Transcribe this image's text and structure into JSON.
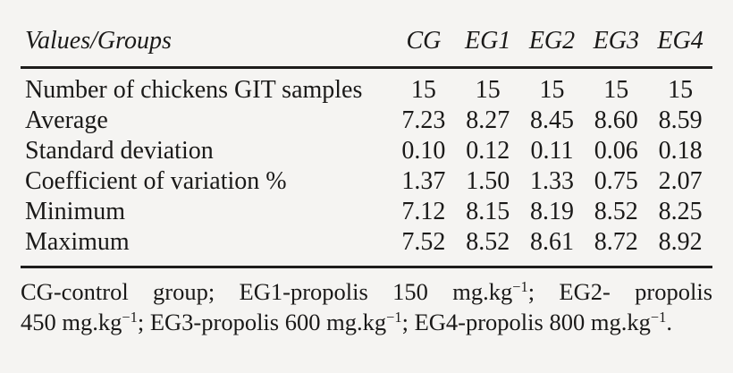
{
  "table": {
    "header": {
      "label_col": "Values/Groups",
      "group_cols": [
        "CG",
        "EG1",
        "EG2",
        "EG3",
        "EG4"
      ]
    },
    "rows": [
      {
        "label": "Number of chickens GIT samples",
        "values": [
          "15",
          "15",
          "15",
          "15",
          "15"
        ]
      },
      {
        "label": "Average",
        "values": [
          "7.23",
          "8.27",
          "8.45",
          "8.60",
          "8.59"
        ]
      },
      {
        "label": "Standard deviation",
        "values": [
          "0.10",
          "0.12",
          "0.11",
          "0.06",
          "0.18"
        ]
      },
      {
        "label": "Coefficient of variation %",
        "values": [
          "1.37",
          "1.50",
          "1.33",
          "0.75",
          "2.07"
        ]
      },
      {
        "label": "Minimum",
        "values": [
          "7.12",
          "8.15",
          "8.19",
          "8.52",
          "8.25"
        ]
      },
      {
        "label": "Maximum",
        "values": [
          "7.52",
          "8.52",
          "8.61",
          "8.72",
          "8.92"
        ]
      }
    ]
  },
  "footnote": {
    "line1": {
      "seg0": "CG-control group; EG1-propolis 150 mg.kg",
      "sup0": "−1",
      "seg1": "; EG2- propolis"
    },
    "line2": {
      "seg0": "450 mg.kg",
      "sup0": "−1",
      "seg1": "; EG3-propolis 600 mg.kg",
      "sup1": "−1",
      "seg2": "; EG4-propolis 800 mg.kg",
      "sup2": "−1",
      "seg3": "."
    }
  },
  "colors": {
    "background": "#f5f4f2",
    "text": "#1a1918",
    "rule": "#1e1d1c"
  }
}
